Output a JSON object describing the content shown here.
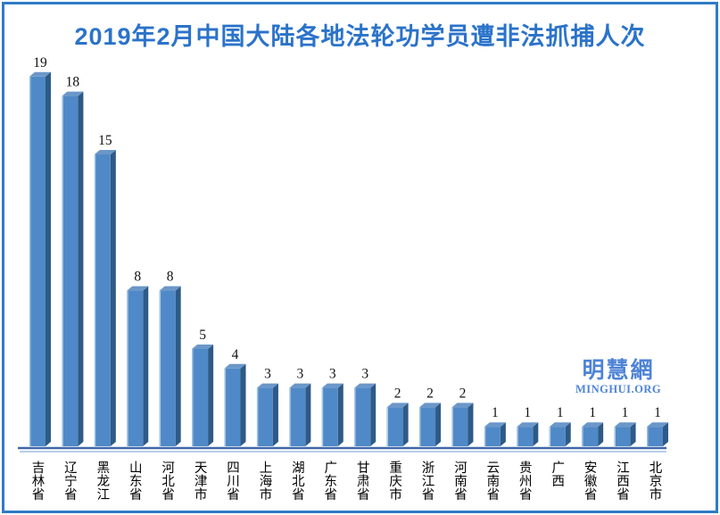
{
  "chart_data": {
    "type": "bar",
    "title": "2019年2月中国大陆各地法轮功学员遭非法抓捕人次",
    "categories": [
      "吉林省",
      "辽宁省",
      "黑龙江",
      "山东省",
      "河北省",
      "天津市",
      "四川省",
      "上海市",
      "湖北省",
      "广东省",
      "甘肃省",
      "重庆市",
      "浙江省",
      "河南省",
      "云南省",
      "贵州省",
      "广西",
      "安徽省",
      "江西省",
      "北京市"
    ],
    "values": [
      19,
      18,
      15,
      8,
      8,
      5,
      4,
      3,
      3,
      3,
      3,
      2,
      2,
      2,
      1,
      1,
      1,
      1,
      1,
      1
    ],
    "xlabel": "",
    "ylabel": "",
    "ylim": [
      0,
      19
    ],
    "grid": false,
    "legend": false,
    "data_labels": true,
    "bar_style": "3d",
    "colors": {
      "bar_front": "#5089C7",
      "bar_side": "#2E5A86",
      "bar_top": "#6B97C9",
      "bar_highlight": "#AECBE8",
      "axis_line": "#3E68A8",
      "axis_shadow_line": "#A2BDE2",
      "title": "#2B73C9",
      "frame_border": "#2F7BC5",
      "watermark": "#4E83D6"
    }
  },
  "watermark": {
    "cn": "明慧網",
    "en": "MINGHUI.ORG"
  }
}
